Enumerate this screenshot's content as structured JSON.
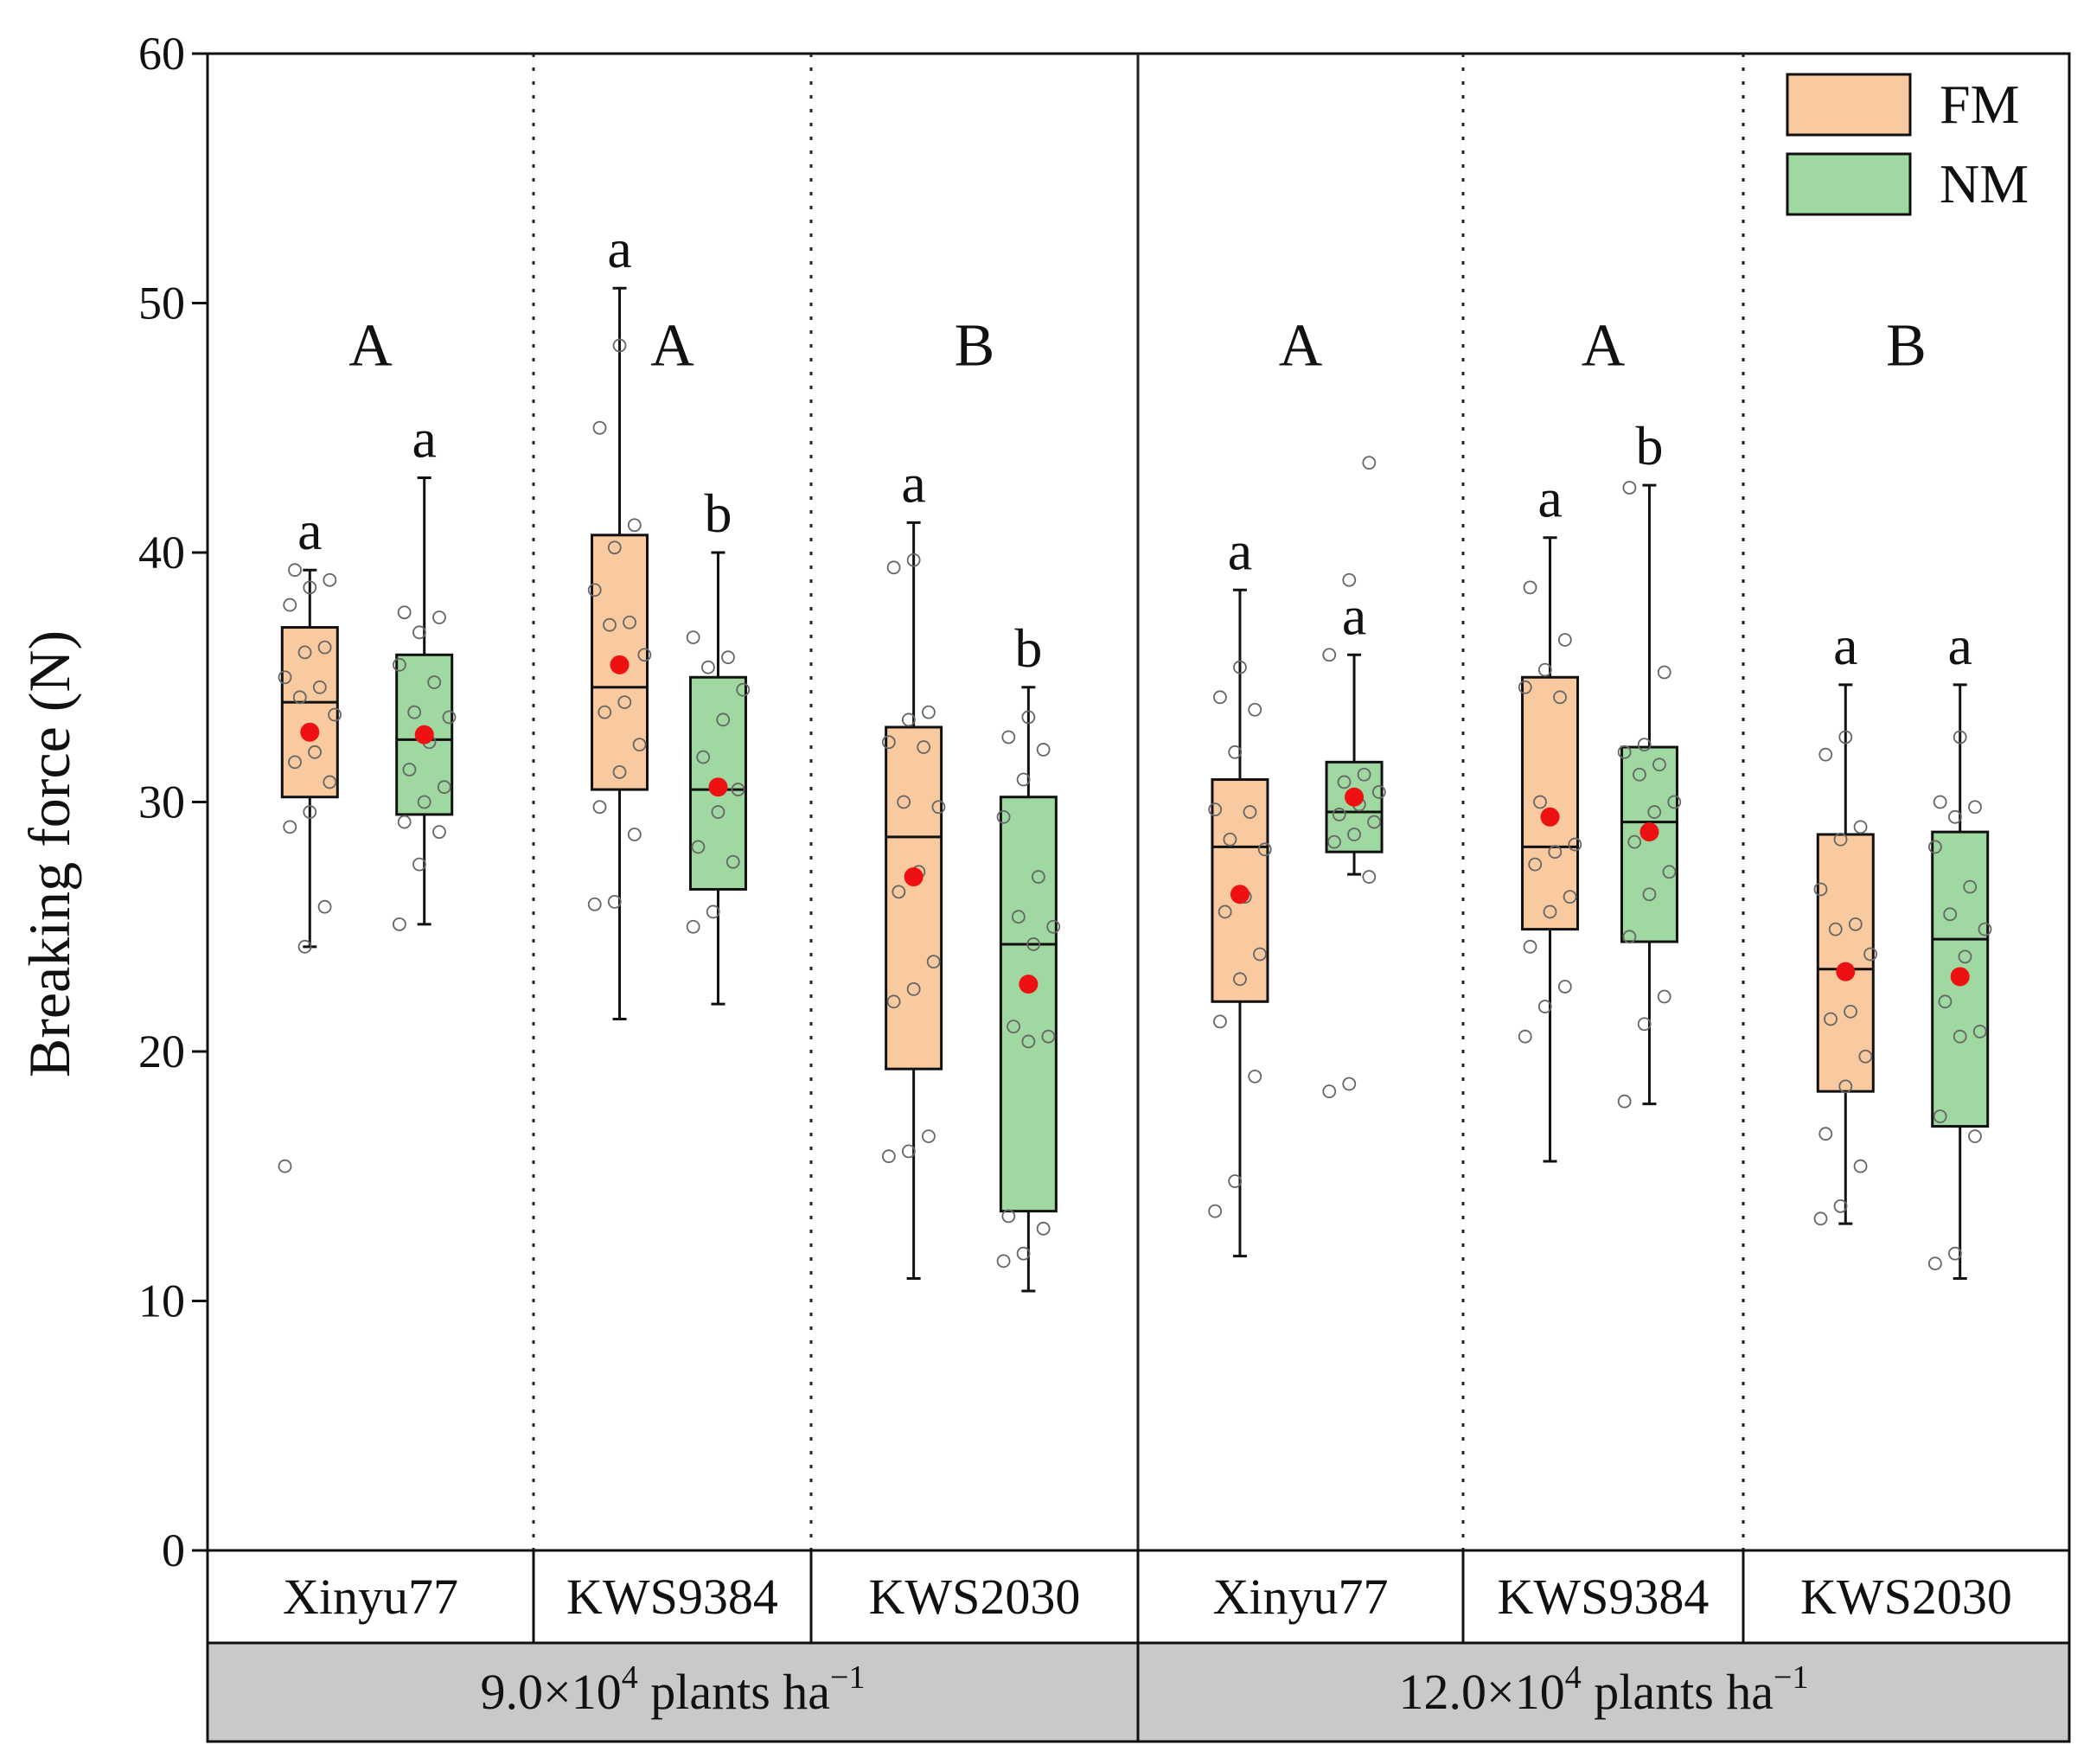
{
  "chart_data": {
    "type": "box",
    "ylabel": "Breaking force (N)",
    "ylim": [
      0,
      60
    ],
    "yticks": [
      0,
      10,
      20,
      30,
      40,
      50,
      60
    ],
    "legend": {
      "position": "top-right",
      "entries": [
        {
          "name": "FM",
          "color": "#f9c9a0"
        },
        {
          "name": "NM",
          "color": "#9fd8a0"
        }
      ]
    },
    "mean_marker_color": "#ee1111",
    "densities": [
      {
        "label_prefix": "9.0×10",
        "label_sup": "4",
        "label_suffix": " plants ha",
        "label_unit_sup": "−1",
        "groups": [
          {
            "cultivar": "Xinyu77",
            "letter": "A",
            "boxes": [
              {
                "series": "FM",
                "whisker_low": 24.2,
                "q1": 30.2,
                "median": 34.0,
                "q3": 37.0,
                "whisker_high": 39.3,
                "mean": 32.8,
                "letter": "a",
                "points": [
                  15.4,
                  24.2,
                  25.8,
                  29.0,
                  29.6,
                  30.8,
                  31.6,
                  32.0,
                  33.5,
                  34.2,
                  34.6,
                  35.0,
                  36.0,
                  36.2,
                  37.9,
                  38.6,
                  38.9,
                  39.3
                ]
              },
              {
                "series": "NM",
                "whisker_low": 25.1,
                "q1": 29.5,
                "median": 32.5,
                "q3": 35.9,
                "whisker_high": 43.0,
                "mean": 32.7,
                "letter": "a",
                "points": [
                  25.1,
                  27.5,
                  28.8,
                  29.2,
                  30.0,
                  30.6,
                  31.3,
                  32.4,
                  33.4,
                  33.6,
                  34.8,
                  35.5,
                  36.8,
                  37.4,
                  37.6
                ]
              }
            ]
          },
          {
            "cultivar": "KWS9384",
            "letter": "A",
            "boxes": [
              {
                "series": "FM",
                "whisker_low": 21.3,
                "q1": 30.5,
                "median": 34.6,
                "q3": 40.7,
                "whisker_high": 50.6,
                "mean": 35.5,
                "letter": "a",
                "points": [
                  25.9,
                  26.0,
                  28.7,
                  29.8,
                  31.2,
                  32.3,
                  33.6,
                  34.0,
                  35.9,
                  37.1,
                  37.2,
                  38.5,
                  40.2,
                  41.1,
                  45.0,
                  48.3
                ]
              },
              {
                "series": "NM",
                "whisker_low": 21.9,
                "q1": 26.5,
                "median": 30.5,
                "q3": 35.0,
                "whisker_high": 40.0,
                "mean": 30.6,
                "letter": "b",
                "points": [
                  25.0,
                  25.6,
                  27.6,
                  28.2,
                  29.6,
                  30.5,
                  31.8,
                  33.3,
                  34.5,
                  35.4,
                  35.8,
                  36.6
                ]
              }
            ]
          },
          {
            "cultivar": "KWS2030",
            "letter": "B",
            "boxes": [
              {
                "series": "FM",
                "whisker_low": 10.9,
                "q1": 19.3,
                "median": 28.6,
                "q3": 33.0,
                "whisker_high": 41.2,
                "mean": 27.0,
                "letter": "a",
                "points": [
                  15.8,
                  16.0,
                  16.6,
                  22.0,
                  22.5,
                  23.6,
                  26.4,
                  27.2,
                  29.8,
                  30.0,
                  32.2,
                  32.4,
                  33.3,
                  33.6,
                  39.4,
                  39.7
                ]
              },
              {
                "series": "NM",
                "whisker_low": 10.4,
                "q1": 13.6,
                "median": 24.3,
                "q3": 30.2,
                "whisker_high": 34.6,
                "mean": 22.7,
                "letter": "b",
                "points": [
                  11.6,
                  11.9,
                  12.9,
                  13.4,
                  20.4,
                  20.6,
                  21.0,
                  24.3,
                  25.0,
                  25.4,
                  27.0,
                  29.4,
                  30.9,
                  32.1,
                  32.6,
                  33.4
                ]
              }
            ]
          }
        ]
      },
      {
        "label_prefix": "12.0×10",
        "label_sup": "4",
        "label_suffix": " plants ha",
        "label_unit_sup": "−1",
        "groups": [
          {
            "cultivar": "Xinyu77",
            "letter": "A",
            "boxes": [
              {
                "series": "FM",
                "whisker_low": 11.8,
                "q1": 22.0,
                "median": 28.2,
                "q3": 30.9,
                "whisker_high": 38.5,
                "mean": 26.3,
                "letter": "a",
                "points": [
                  13.6,
                  14.8,
                  19.0,
                  21.2,
                  22.9,
                  23.9,
                  25.6,
                  26.2,
                  28.1,
                  28.5,
                  29.6,
                  29.7,
                  32.0,
                  33.7,
                  34.2,
                  35.4
                ]
              },
              {
                "series": "NM",
                "whisker_low": 27.1,
                "q1": 28.0,
                "median": 29.6,
                "q3": 31.6,
                "whisker_high": 35.9,
                "mean": 30.2,
                "letter": "a",
                "points": [
                  18.4,
                  18.7,
                  27.0,
                  28.4,
                  28.7,
                  29.2,
                  29.5,
                  29.9,
                  30.4,
                  30.8,
                  31.1,
                  35.9,
                  38.9,
                  43.6
                ]
              }
            ]
          },
          {
            "cultivar": "KWS9384",
            "letter": "A",
            "boxes": [
              {
                "series": "FM",
                "whisker_low": 15.6,
                "q1": 24.9,
                "median": 28.2,
                "q3": 35.0,
                "whisker_high": 40.6,
                "mean": 29.4,
                "letter": "a",
                "points": [
                  20.6,
                  21.8,
                  22.6,
                  24.2,
                  25.6,
                  26.2,
                  27.5,
                  28.0,
                  28.3,
                  30.0,
                  34.2,
                  34.6,
                  35.3,
                  36.5,
                  38.6
                ]
              },
              {
                "series": "NM",
                "whisker_low": 17.9,
                "q1": 24.4,
                "median": 29.2,
                "q3": 32.2,
                "whisker_high": 42.7,
                "mean": 28.8,
                "letter": "b",
                "points": [
                  18.0,
                  21.1,
                  22.2,
                  24.6,
                  26.3,
                  27.2,
                  28.4,
                  29.6,
                  30.0,
                  31.1,
                  31.5,
                  32.0,
                  32.3,
                  35.2,
                  42.6
                ]
              }
            ]
          },
          {
            "cultivar": "KWS2030",
            "letter": "B",
            "boxes": [
              {
                "series": "FM",
                "whisker_low": 13.1,
                "q1": 18.4,
                "median": 23.3,
                "q3": 28.7,
                "whisker_high": 34.7,
                "mean": 23.2,
                "letter": "a",
                "points": [
                  13.3,
                  13.8,
                  15.4,
                  16.7,
                  18.6,
                  19.8,
                  21.3,
                  21.6,
                  23.9,
                  24.9,
                  25.1,
                  26.5,
                  28.5,
                  29.0,
                  31.9,
                  32.6
                ]
              },
              {
                "series": "NM",
                "whisker_low": 10.9,
                "q1": 17.0,
                "median": 24.5,
                "q3": 28.8,
                "whisker_high": 34.7,
                "mean": 23.0,
                "letter": "a",
                "points": [
                  11.5,
                  11.9,
                  16.6,
                  17.4,
                  20.6,
                  20.8,
                  22.0,
                  23.8,
                  24.9,
                  25.5,
                  26.6,
                  28.2,
                  29.4,
                  29.8,
                  30.0,
                  32.6
                ]
              }
            ]
          }
        ]
      }
    ]
  }
}
